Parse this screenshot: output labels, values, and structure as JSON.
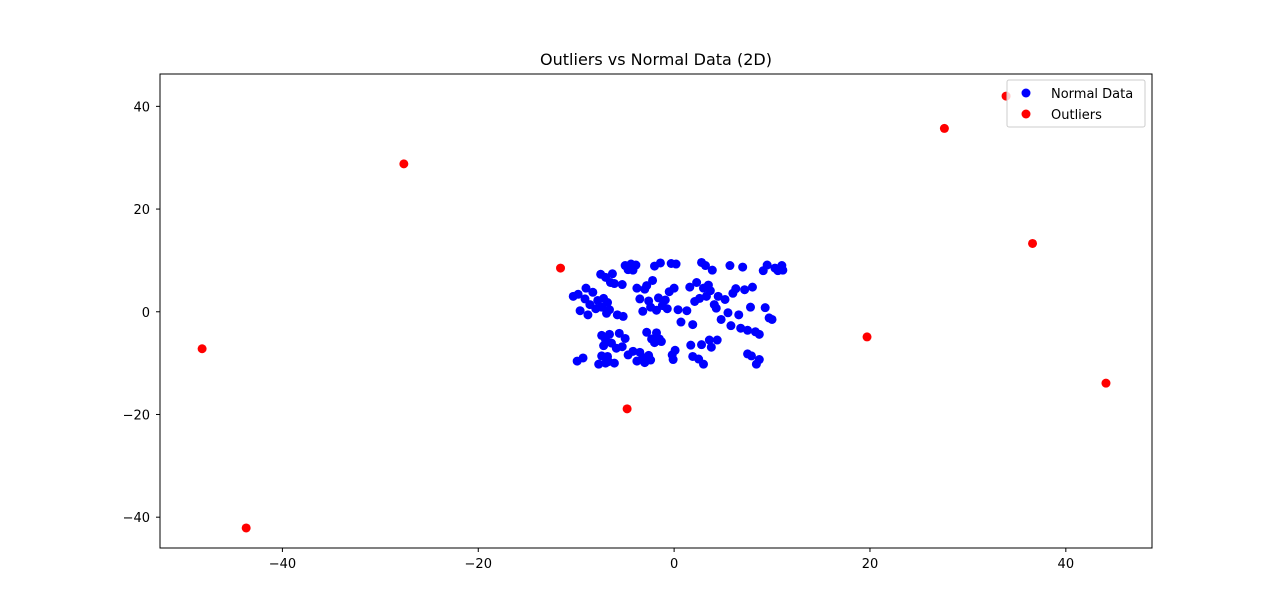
{
  "chart_data": {
    "type": "scatter",
    "title": "Outliers vs Normal Data (2D)",
    "xlabel": "",
    "ylabel": "",
    "xlim": [
      -52.5,
      48.8
    ],
    "ylim": [
      -46.0,
      46.3
    ],
    "x_ticks": [
      -40,
      -20,
      0,
      20,
      40
    ],
    "y_ticks": [
      -40,
      -20,
      0,
      20,
      40
    ],
    "x_tick_labels": [
      "−40",
      "−20",
      "0",
      "20",
      "40"
    ],
    "y_tick_labels": [
      "−40",
      "−20",
      "0",
      "20",
      "40"
    ],
    "grid": false,
    "legend_position": "upper right",
    "series": [
      {
        "name": "Normal Data",
        "color": "#0000ff",
        "points": [
          [
            -10.3,
            3.0
          ],
          [
            -9.8,
            3.4
          ],
          [
            -9.6,
            0.2
          ],
          [
            -9.1,
            2.5
          ],
          [
            -9.0,
            4.6
          ],
          [
            -8.8,
            -0.6
          ],
          [
            -8.6,
            1.4
          ],
          [
            -8.3,
            3.8
          ],
          [
            -8.0,
            0.6
          ],
          [
            -7.8,
            2.2
          ],
          [
            -7.5,
            7.3
          ],
          [
            -7.4,
            0.9
          ],
          [
            -7.2,
            2.6
          ],
          [
            -7.0,
            6.7
          ],
          [
            -6.9,
            -0.3
          ],
          [
            -6.8,
            1.8
          ],
          [
            -6.6,
            0.4
          ],
          [
            -6.5,
            5.7
          ],
          [
            -6.3,
            7.4
          ],
          [
            -6.1,
            5.5
          ],
          [
            -5.8,
            -0.6
          ],
          [
            -5.3,
            5.3
          ],
          [
            -5.2,
            -0.9
          ],
          [
            -5.0,
            9.0
          ],
          [
            -4.7,
            8.2
          ],
          [
            -4.4,
            9.3
          ],
          [
            -4.2,
            8.1
          ],
          [
            -3.9,
            9.1
          ],
          [
            -3.8,
            4.6
          ],
          [
            -3.5,
            2.5
          ],
          [
            -3.2,
            0.1
          ],
          [
            -3.0,
            4.4
          ],
          [
            -2.8,
            5.1
          ],
          [
            -2.6,
            2.1
          ],
          [
            -2.4,
            0.9
          ],
          [
            -2.2,
            6.1
          ],
          [
            -2.0,
            8.9
          ],
          [
            -1.8,
            0.3
          ],
          [
            -1.6,
            2.7
          ],
          [
            -1.4,
            9.5
          ],
          [
            -1.2,
            1.2
          ],
          [
            -0.9,
            2.3
          ],
          [
            -0.7,
            0.6
          ],
          [
            -0.5,
            3.9
          ],
          [
            -0.3,
            9.4
          ],
          [
            0.0,
            4.6
          ],
          [
            0.2,
            9.3
          ],
          [
            0.4,
            0.4
          ],
          [
            0.7,
            -2.0
          ],
          [
            1.3,
            0.2
          ],
          [
            1.6,
            4.8
          ],
          [
            1.9,
            -2.5
          ],
          [
            2.1,
            2.0
          ],
          [
            2.3,
            5.7
          ],
          [
            2.6,
            2.6
          ],
          [
            2.8,
            9.6
          ],
          [
            3.0,
            4.6
          ],
          [
            3.2,
            9.0
          ],
          [
            3.3,
            3.0
          ],
          [
            3.5,
            5.2
          ],
          [
            3.7,
            4.1
          ],
          [
            3.9,
            8.1
          ],
          [
            4.1,
            1.4
          ],
          [
            4.3,
            0.7
          ],
          [
            4.5,
            3.0
          ],
          [
            4.8,
            -1.5
          ],
          [
            5.2,
            2.4
          ],
          [
            5.5,
            -0.2
          ],
          [
            5.7,
            9.0
          ],
          [
            5.8,
            -2.7
          ],
          [
            6.0,
            3.6
          ],
          [
            6.3,
            4.5
          ],
          [
            6.6,
            -0.6
          ],
          [
            6.8,
            -3.2
          ],
          [
            7.0,
            8.7
          ],
          [
            7.2,
            4.3
          ],
          [
            7.5,
            -3.6
          ],
          [
            7.8,
            0.9
          ],
          [
            8.0,
            4.8
          ],
          [
            8.3,
            -3.9
          ],
          [
            8.7,
            -4.4
          ],
          [
            9.1,
            8.0
          ],
          [
            9.3,
            0.8
          ],
          [
            9.5,
            9.1
          ],
          [
            9.7,
            -1.2
          ],
          [
            10.0,
            -1.5
          ],
          [
            10.3,
            8.5
          ],
          [
            10.6,
            8.0
          ],
          [
            11.0,
            9.0
          ],
          [
            11.1,
            8.1
          ],
          [
            -7.4,
            -4.6
          ],
          [
            -7.2,
            -6.6
          ],
          [
            -7.0,
            -5.5
          ],
          [
            -6.8,
            -8.7
          ],
          [
            -6.6,
            -4.4
          ],
          [
            -6.4,
            -6.1
          ],
          [
            -6.1,
            -10.0
          ],
          [
            -5.9,
            -7.1
          ],
          [
            -5.6,
            -4.2
          ],
          [
            -5.3,
            -6.8
          ],
          [
            -5.0,
            -5.2
          ],
          [
            -4.7,
            -8.4
          ],
          [
            -4.2,
            -7.7
          ],
          [
            -3.8,
            -9.6
          ],
          [
            -3.5,
            -7.9
          ],
          [
            -3.2,
            -8.9
          ],
          [
            -3.0,
            -9.9
          ],
          [
            -2.8,
            -4.0
          ],
          [
            -2.6,
            -8.5
          ],
          [
            -2.4,
            -9.4
          ],
          [
            -2.3,
            -5.3
          ],
          [
            -2.0,
            -6.0
          ],
          [
            -1.8,
            -4.1
          ],
          [
            -1.5,
            -5.3
          ],
          [
            -1.3,
            -5.8
          ],
          [
            -0.2,
            -8.4
          ],
          [
            -0.1,
            -9.3
          ],
          [
            0.1,
            -7.5
          ],
          [
            1.7,
            -6.5
          ],
          [
            1.9,
            -8.7
          ],
          [
            2.5,
            -9.2
          ],
          [
            2.8,
            -6.4
          ],
          [
            3.0,
            -10.2
          ],
          [
            3.6,
            -5.5
          ],
          [
            3.8,
            -6.9
          ],
          [
            4.4,
            -5.5
          ],
          [
            7.5,
            -8.2
          ],
          [
            7.9,
            -8.6
          ],
          [
            8.4,
            -10.2
          ],
          [
            8.7,
            -9.3
          ],
          [
            -9.9,
            -9.6
          ],
          [
            -9.3,
            -9.0
          ],
          [
            -7.7,
            -10.2
          ],
          [
            -7.4,
            -8.6
          ],
          [
            -7.0,
            -10.0
          ],
          [
            -6.7,
            -9.7
          ]
        ]
      },
      {
        "name": "Outliers",
        "color": "#ff0000",
        "points": [
          [
            -48.2,
            -7.2
          ],
          [
            -43.7,
            -42.1
          ],
          [
            -27.6,
            28.8
          ],
          [
            -11.6,
            8.5
          ],
          [
            -4.8,
            -18.9
          ],
          [
            19.7,
            -4.9
          ],
          [
            27.6,
            35.7
          ],
          [
            33.9,
            42.0
          ],
          [
            36.6,
            13.3
          ],
          [
            44.1,
            -13.9
          ]
        ]
      }
    ]
  }
}
